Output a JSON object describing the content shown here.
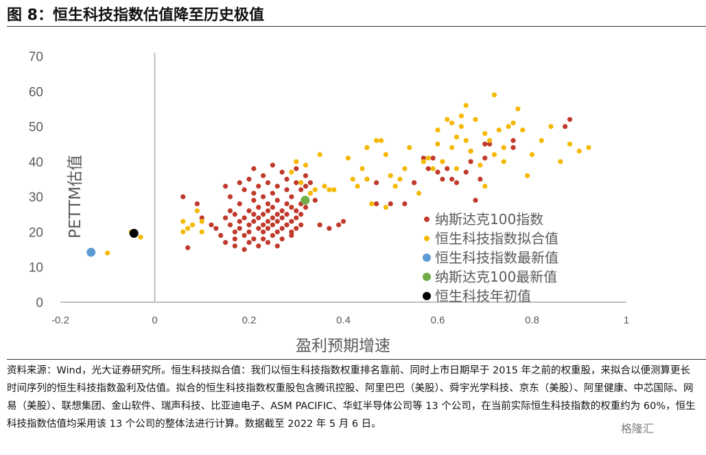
{
  "figure_title": "图 8：恒生科技指数估值降至历史极值",
  "source_note": "资料来源：Wind，光大证券研究所。恒生科技拟合值：我们以恒生科技指数权重排名靠前、同时上市日期早于 2015 年之前的权重股，来拟合以便测算更长时间序列的恒生科技指数盈利及估值。拟合的恒生科技指数权重股包含腾讯控股、阿里巴巴（美股）、舜宇光学科技、京东（美股）、阿里健康、中芯国际、网易（美股）、联想集团、金山软件、瑞声科技、比亚迪电子、ASM PACIFIC、华虹半导体公司等 13 个公司，在当前实际恒生科技指数的权重约为 60%，恒生科技指数估值均采用该 13 个公司的整体法进行计算。数据截至 2022 年 5 月 6 日。",
  "watermark": "格隆汇",
  "chart_data": {
    "type": "scatter",
    "title": "",
    "xlabel": "盈利预期增速",
    "ylabel": "PETTM估值",
    "xlim": [
      -0.2,
      1
    ],
    "ylim": [
      0,
      70
    ],
    "xticks": [
      -0.2,
      0,
      0.2,
      0.4,
      0.6,
      0.8,
      1
    ],
    "xtick_labels": [
      "-0.2",
      "0",
      "0.2",
      "0.4",
      "0.6",
      "0.8",
      "1"
    ],
    "yticks": [
      0,
      10,
      20,
      30,
      40,
      50,
      60,
      70
    ],
    "ytick_labels": [
      "0",
      "10",
      "20",
      "30",
      "40",
      "50",
      "60",
      "70"
    ],
    "grid": false,
    "legend_position": "right",
    "series": [
      {
        "name": "纳斯达克100指数",
        "color": "#c0392b",
        "points": [
          [
            0.06,
            30
          ],
          [
            0.07,
            15.5
          ],
          [
            0.09,
            28
          ],
          [
            0.1,
            24
          ],
          [
            0.12,
            22
          ],
          [
            0.13,
            21
          ],
          [
            0.14,
            19
          ],
          [
            0.15,
            24
          ],
          [
            0.15,
            33
          ],
          [
            0.15,
            17
          ],
          [
            0.16,
            22
          ],
          [
            0.16,
            26
          ],
          [
            0.16,
            30
          ],
          [
            0.17,
            20
          ],
          [
            0.17,
            25
          ],
          [
            0.17,
            18
          ],
          [
            0.17,
            16
          ],
          [
            0.18,
            21
          ],
          [
            0.18,
            23
          ],
          [
            0.18,
            28
          ],
          [
            0.18,
            34
          ],
          [
            0.19,
            19
          ],
          [
            0.19,
            24
          ],
          [
            0.19,
            32
          ],
          [
            0.19,
            15
          ],
          [
            0.2,
            20
          ],
          [
            0.2,
            22
          ],
          [
            0.2,
            26
          ],
          [
            0.2,
            35
          ],
          [
            0.2,
            17
          ],
          [
            0.21,
            23
          ],
          [
            0.21,
            25
          ],
          [
            0.21,
            29
          ],
          [
            0.21,
            38
          ],
          [
            0.21,
            18
          ],
          [
            0.21,
            31
          ],
          [
            0.22,
            21
          ],
          [
            0.22,
            24
          ],
          [
            0.22,
            27
          ],
          [
            0.22,
            33
          ],
          [
            0.22,
            16
          ],
          [
            0.23,
            20
          ],
          [
            0.23,
            22
          ],
          [
            0.23,
            25
          ],
          [
            0.23,
            30
          ],
          [
            0.23,
            36
          ],
          [
            0.23,
            18
          ],
          [
            0.24,
            21
          ],
          [
            0.24,
            23
          ],
          [
            0.24,
            26
          ],
          [
            0.24,
            28
          ],
          [
            0.24,
            34
          ],
          [
            0.24,
            17
          ],
          [
            0.25,
            22
          ],
          [
            0.25,
            24
          ],
          [
            0.25,
            27
          ],
          [
            0.25,
            31
          ],
          [
            0.25,
            39
          ],
          [
            0.25,
            19
          ],
          [
            0.26,
            20
          ],
          [
            0.26,
            23
          ],
          [
            0.26,
            25
          ],
          [
            0.26,
            29
          ],
          [
            0.26,
            33
          ],
          [
            0.26,
            16
          ],
          [
            0.27,
            21
          ],
          [
            0.27,
            24
          ],
          [
            0.27,
            26
          ],
          [
            0.27,
            37
          ],
          [
            0.27,
            18
          ],
          [
            0.28,
            22
          ],
          [
            0.28,
            25
          ],
          [
            0.28,
            28
          ],
          [
            0.28,
            32
          ],
          [
            0.28,
            35
          ],
          [
            0.29,
            20
          ],
          [
            0.29,
            23
          ],
          [
            0.29,
            27
          ],
          [
            0.29,
            30
          ],
          [
            0.29,
            19
          ],
          [
            0.3,
            21
          ],
          [
            0.3,
            24
          ],
          [
            0.3,
            26
          ],
          [
            0.3,
            34
          ],
          [
            0.3,
            38
          ],
          [
            0.31,
            22
          ],
          [
            0.31,
            25
          ],
          [
            0.31,
            28
          ],
          [
            0.31,
            32
          ],
          [
            0.32,
            27
          ],
          [
            0.32,
            33
          ],
          [
            0.32,
            36
          ],
          [
            0.33,
            31
          ],
          [
            0.33,
            34
          ],
          [
            0.34,
            29
          ],
          [
            0.35,
            22
          ],
          [
            0.37,
            21
          ],
          [
            0.39,
            22
          ],
          [
            0.4,
            23
          ],
          [
            0.45,
            35
          ],
          [
            0.47,
            34
          ],
          [
            0.47,
            28
          ],
          [
            0.5,
            28
          ],
          [
            0.53,
            28
          ],
          [
            0.55,
            34
          ],
          [
            0.57,
            41
          ],
          [
            0.58,
            38
          ],
          [
            0.59,
            41
          ],
          [
            0.6,
            37
          ],
          [
            0.61,
            35
          ],
          [
            0.62,
            38
          ],
          [
            0.63,
            35
          ],
          [
            0.64,
            34
          ],
          [
            0.66,
            37
          ],
          [
            0.67,
            40
          ],
          [
            0.67,
            43
          ],
          [
            0.68,
            29
          ],
          [
            0.69,
            35
          ],
          [
            0.7,
            41
          ],
          [
            0.7,
            45
          ],
          [
            0.71,
            45
          ],
          [
            0.76,
            44
          ],
          [
            0.76,
            46
          ],
          [
            0.87,
            50
          ],
          [
            0.88,
            52
          ]
        ]
      },
      {
        "name": "恒生科技指数拟合值",
        "color": "#f5b800",
        "points": [
          [
            -0.1,
            14
          ],
          [
            -0.05,
            20
          ],
          [
            -0.03,
            18.5
          ],
          [
            0.06,
            20
          ],
          [
            0.06,
            23
          ],
          [
            0.07,
            21
          ],
          [
            0.08,
            22
          ],
          [
            0.09,
            26
          ],
          [
            0.1,
            20
          ],
          [
            0.1,
            23
          ],
          [
            0.29,
            37
          ],
          [
            0.3,
            40
          ],
          [
            0.31,
            34
          ],
          [
            0.32,
            39
          ],
          [
            0.33,
            31
          ],
          [
            0.34,
            32
          ],
          [
            0.35,
            42
          ],
          [
            0.36,
            33
          ],
          [
            0.37,
            32
          ],
          [
            0.38,
            32
          ],
          [
            0.41,
            41
          ],
          [
            0.42,
            35
          ],
          [
            0.43,
            33
          ],
          [
            0.44,
            38
          ],
          [
            0.45,
            35
          ],
          [
            0.45,
            44
          ],
          [
            0.46,
            28
          ],
          [
            0.47,
            46
          ],
          [
            0.48,
            46
          ],
          [
            0.49,
            27
          ],
          [
            0.49,
            42
          ],
          [
            0.5,
            36
          ],
          [
            0.51,
            33
          ],
          [
            0.52,
            35
          ],
          [
            0.53,
            38
          ],
          [
            0.54,
            44
          ],
          [
            0.56,
            31
          ],
          [
            0.57,
            40
          ],
          [
            0.58,
            41
          ],
          [
            0.59,
            38
          ],
          [
            0.6,
            45
          ],
          [
            0.6,
            49
          ],
          [
            0.61,
            40
          ],
          [
            0.62,
            52
          ],
          [
            0.63,
            51
          ],
          [
            0.63,
            44
          ],
          [
            0.64,
            38
          ],
          [
            0.64,
            47
          ],
          [
            0.65,
            50
          ],
          [
            0.65,
            53
          ],
          [
            0.66,
            56
          ],
          [
            0.66,
            46
          ],
          [
            0.67,
            43
          ],
          [
            0.68,
            52
          ],
          [
            0.69,
            39
          ],
          [
            0.7,
            48
          ],
          [
            0.7,
            33
          ],
          [
            0.71,
            46
          ],
          [
            0.72,
            59
          ],
          [
            0.72,
            42
          ],
          [
            0.73,
            49
          ],
          [
            0.74,
            44
          ],
          [
            0.74,
            40
          ],
          [
            0.75,
            50
          ],
          [
            0.76,
            51
          ],
          [
            0.77,
            55
          ],
          [
            0.78,
            49
          ],
          [
            0.79,
            36
          ],
          [
            0.8,
            42
          ],
          [
            0.82,
            46
          ],
          [
            0.84,
            50
          ],
          [
            0.86,
            40
          ],
          [
            0.88,
            45
          ],
          [
            0.9,
            43
          ],
          [
            0.92,
            44
          ]
        ]
      },
      {
        "name": "恒生科技指数最新值",
        "color": "#5b9bd5",
        "points": [
          [
            -0.135,
            14.2
          ]
        ]
      },
      {
        "name": "纳斯达克100最新值",
        "color": "#70ad47",
        "points": [
          [
            0.319,
            29
          ]
        ]
      },
      {
        "name": "恒生科技年初值",
        "color": "#000000",
        "points": [
          [
            -0.044,
            19.6
          ]
        ]
      }
    ]
  }
}
